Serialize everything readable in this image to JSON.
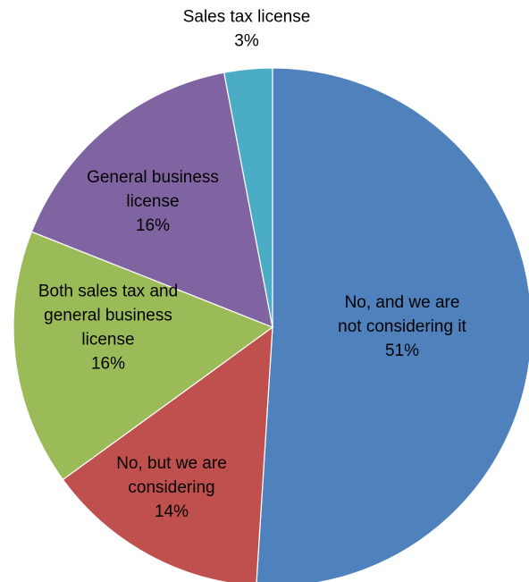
{
  "chart_data": {
    "type": "pie",
    "title": "",
    "slices": [
      {
        "label": "No, and we are not considering it",
        "label_lines": [
          "No, and we are",
          "not considering it"
        ],
        "value": 51,
        "value_text": "51%",
        "color": "#4f81bd"
      },
      {
        "label": "No, but we are considering",
        "label_lines": [
          "No, but we are",
          "considering"
        ],
        "value": 14,
        "value_text": "14%",
        "color": "#c0504d"
      },
      {
        "label": "Both sales tax and general business license",
        "label_lines": [
          "Both sales tax and",
          "general business",
          "license"
        ],
        "value": 16,
        "value_text": "16%",
        "color": "#9bbb59"
      },
      {
        "label": "General business license",
        "label_lines": [
          "General business",
          "license"
        ],
        "value": 16,
        "value_text": "16%",
        "color": "#8064a2"
      },
      {
        "label": "Sales tax license",
        "label_lines": [
          "Sales tax license"
        ],
        "value": 3,
        "value_text": "3%",
        "color": "#4bacc6"
      }
    ],
    "start_angle_deg": 0,
    "direction": "clockwise",
    "legend": "none"
  }
}
